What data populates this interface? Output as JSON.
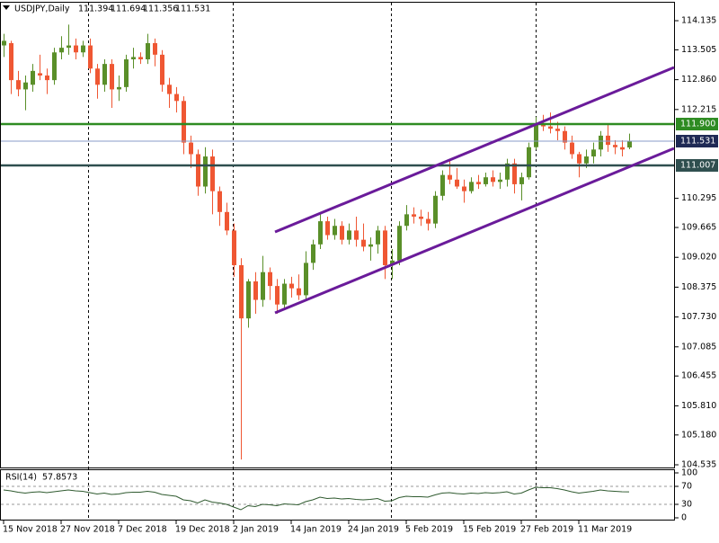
{
  "chart_data": [
    {
      "type": "candlestick",
      "title": "USDJPY,Daily",
      "categories": [
        "15 Nov 2018",
        null,
        null,
        null,
        null,
        null,
        null,
        null,
        "27 Nov 2018",
        null,
        null,
        null,
        null,
        null,
        null,
        null,
        "7 Dec 2018",
        null,
        null,
        null,
        null,
        null,
        null,
        null,
        "19 Dec 2018",
        null,
        null,
        null,
        null,
        null,
        null,
        null,
        "2 Jan 2019",
        null,
        null,
        null,
        null,
        null,
        null,
        null,
        "14 Jan 2019",
        null,
        null,
        null,
        null,
        null,
        null,
        null,
        "24 Jan 2019",
        null,
        null,
        null,
        null,
        null,
        null,
        null,
        "5 Feb 2019",
        null,
        null,
        null,
        null,
        null,
        null,
        null,
        "15 Feb 2019",
        null,
        null,
        null,
        null,
        null,
        null,
        null,
        "27 Feb 2019",
        null,
        null,
        null,
        null,
        null,
        null,
        null,
        "11 Mar 2019",
        null,
        null,
        null,
        null,
        null,
        null,
        null
      ],
      "open": [
        113.6,
        113.65,
        112.85,
        112.65,
        112.75,
        113.0,
        112.95,
        112.85,
        113.45,
        113.55,
        113.6,
        113.45,
        113.6,
        113.1,
        112.75,
        113.2,
        112.65,
        112.7,
        113.3,
        113.35,
        113.3,
        113.65,
        113.4,
        112.75,
        112.55,
        112.4,
        111.5,
        111.25,
        110.55,
        111.2,
        110.45,
        110.0,
        109.6,
        108.85,
        107.7,
        108.5,
        108.1,
        108.7,
        108.4,
        108.0,
        108.45,
        108.35,
        108.2,
        108.9,
        109.3,
        109.8,
        109.5,
        109.7,
        109.4,
        109.6,
        109.4,
        109.25,
        109.3,
        109.6,
        108.85,
        108.95,
        109.7,
        109.95,
        109.9,
        109.85,
        109.75,
        110.35,
        110.8,
        110.7,
        110.55,
        110.45,
        110.65,
        110.6,
        110.75,
        110.65,
        110.7,
        111.05,
        110.6,
        110.75,
        111.4,
        111.9,
        111.85,
        111.8,
        111.75,
        111.5,
        111.25,
        111.05,
        111.2,
        111.35,
        111.65,
        111.45,
        111.4,
        111.394
      ],
      "high": [
        113.85,
        113.7,
        113.05,
        112.95,
        113.2,
        113.4,
        113.1,
        113.55,
        113.8,
        114.05,
        113.75,
        113.7,
        113.75,
        113.2,
        113.3,
        113.3,
        112.95,
        113.4,
        113.55,
        113.45,
        113.85,
        113.75,
        113.5,
        112.9,
        112.7,
        112.5,
        111.65,
        111.35,
        111.4,
        111.35,
        110.55,
        110.2,
        109.75,
        109.0,
        108.55,
        108.7,
        109.05,
        108.8,
        108.55,
        108.55,
        108.6,
        108.65,
        109.15,
        109.4,
        110.0,
        109.9,
        109.85,
        109.8,
        109.75,
        109.9,
        109.75,
        109.45,
        109.7,
        109.7,
        109.2,
        109.8,
        110.15,
        110.1,
        110.05,
        110.0,
        110.45,
        110.9,
        111.15,
        110.95,
        110.7,
        110.75,
        110.8,
        110.85,
        110.9,
        110.85,
        111.15,
        111.15,
        110.85,
        111.5,
        112.05,
        112.1,
        112.15,
        111.95,
        111.85,
        111.65,
        111.3,
        111.35,
        111.5,
        111.75,
        111.9,
        111.55,
        111.55,
        111.694
      ],
      "low": [
        113.35,
        112.55,
        112.5,
        112.2,
        112.6,
        112.85,
        112.55,
        112.75,
        113.3,
        113.4,
        113.3,
        113.35,
        113.0,
        112.45,
        112.6,
        112.25,
        112.4,
        112.6,
        113.1,
        113.2,
        113.2,
        113.15,
        112.6,
        112.25,
        112.15,
        111.25,
        110.95,
        110.35,
        110.4,
        109.95,
        109.7,
        109.5,
        108.6,
        104.65,
        107.5,
        107.8,
        107.95,
        108.1,
        107.8,
        107.9,
        108.15,
        108.1,
        108.1,
        108.75,
        109.2,
        109.4,
        109.4,
        109.3,
        109.3,
        109.25,
        109.15,
        108.95,
        109.1,
        108.55,
        108.55,
        108.85,
        109.6,
        109.75,
        109.7,
        109.6,
        109.65,
        110.25,
        110.6,
        110.5,
        110.2,
        110.4,
        110.5,
        110.55,
        110.55,
        110.5,
        110.55,
        110.4,
        110.25,
        110.7,
        111.35,
        111.75,
        111.7,
        111.55,
        111.35,
        111.15,
        110.75,
        110.95,
        111.05,
        111.2,
        111.3,
        111.25,
        111.2,
        111.356
      ],
      "close": [
        113.7,
        112.85,
        112.65,
        112.8,
        113.05,
        112.95,
        112.85,
        113.45,
        113.55,
        113.6,
        113.45,
        113.6,
        113.1,
        112.75,
        113.2,
        112.65,
        112.7,
        113.3,
        113.35,
        113.3,
        113.65,
        113.4,
        112.75,
        112.55,
        112.4,
        111.5,
        111.25,
        110.55,
        111.2,
        110.45,
        110.0,
        109.6,
        108.85,
        107.7,
        108.5,
        108.1,
        108.7,
        108.4,
        108.0,
        108.45,
        108.35,
        108.2,
        108.9,
        109.3,
        109.8,
        109.5,
        109.7,
        109.4,
        109.6,
        109.4,
        109.25,
        109.3,
        109.6,
        108.85,
        108.95,
        109.7,
        109.95,
        109.9,
        109.85,
        109.75,
        110.35,
        110.8,
        110.7,
        110.55,
        110.45,
        110.65,
        110.6,
        110.75,
        110.65,
        110.7,
        111.05,
        110.6,
        110.75,
        111.4,
        111.9,
        111.85,
        111.8,
        111.75,
        111.5,
        111.25,
        111.05,
        111.2,
        111.35,
        111.65,
        111.45,
        111.4,
        111.35,
        111.531
      ],
      "up_color": "#5a8f29",
      "down_color": "#ef5733",
      "ylim": [
        104.477,
        114.524
      ],
      "yticks": [
        114.135,
        113.505,
        {
          "value": 112.86,
          "label": "112.860"
        },
        112.215,
        110.295,
        109.665,
        {
          "value": 109.02,
          "label": "109.020"
        },
        108.375,
        {
          "value": 107.73,
          "label": "107.730"
        },
        107.085,
        106.455,
        {
          "value": 105.81,
          "label": "105.810"
        },
        {
          "value": 105.18,
          "label": "105.180"
        },
        104.535
      ],
      "hlines": [
        {
          "value": 111.9,
          "label": "111.900",
          "color": "#2e8b22"
        },
        {
          "value": 111.531,
          "label": "111.531",
          "color": "#1f2a55"
        },
        {
          "value": 111.007,
          "label": "111.007",
          "color": "#2f4f4f"
        }
      ]
    },
    {
      "type": "line",
      "title": "RSI(14)",
      "values": [
        62,
        60,
        57,
        55,
        57,
        58,
        56,
        58,
        60,
        62,
        60,
        59,
        56,
        53,
        55,
        52,
        53,
        56,
        57,
        57,
        59,
        57,
        52,
        50,
        48,
        40,
        38,
        33,
        40,
        35,
        33,
        30,
        24,
        18,
        27,
        25,
        30,
        29,
        27,
        31,
        30,
        29,
        36,
        40,
        46,
        43,
        44,
        42,
        43,
        41,
        40,
        41,
        43,
        37,
        38,
        45,
        48,
        47,
        47,
        46,
        51,
        55,
        56,
        54,
        53,
        55,
        54,
        56,
        55,
        56,
        58,
        53,
        55,
        62,
        68,
        67,
        67,
        65,
        62,
        58,
        55,
        57,
        59,
        62,
        60,
        59,
        58,
        57.8573
      ],
      "color": "#2f5a2f",
      "ylim": [
        0,
        100
      ],
      "yticks": [
        100,
        70,
        30,
        0
      ]
    }
  ]
}
